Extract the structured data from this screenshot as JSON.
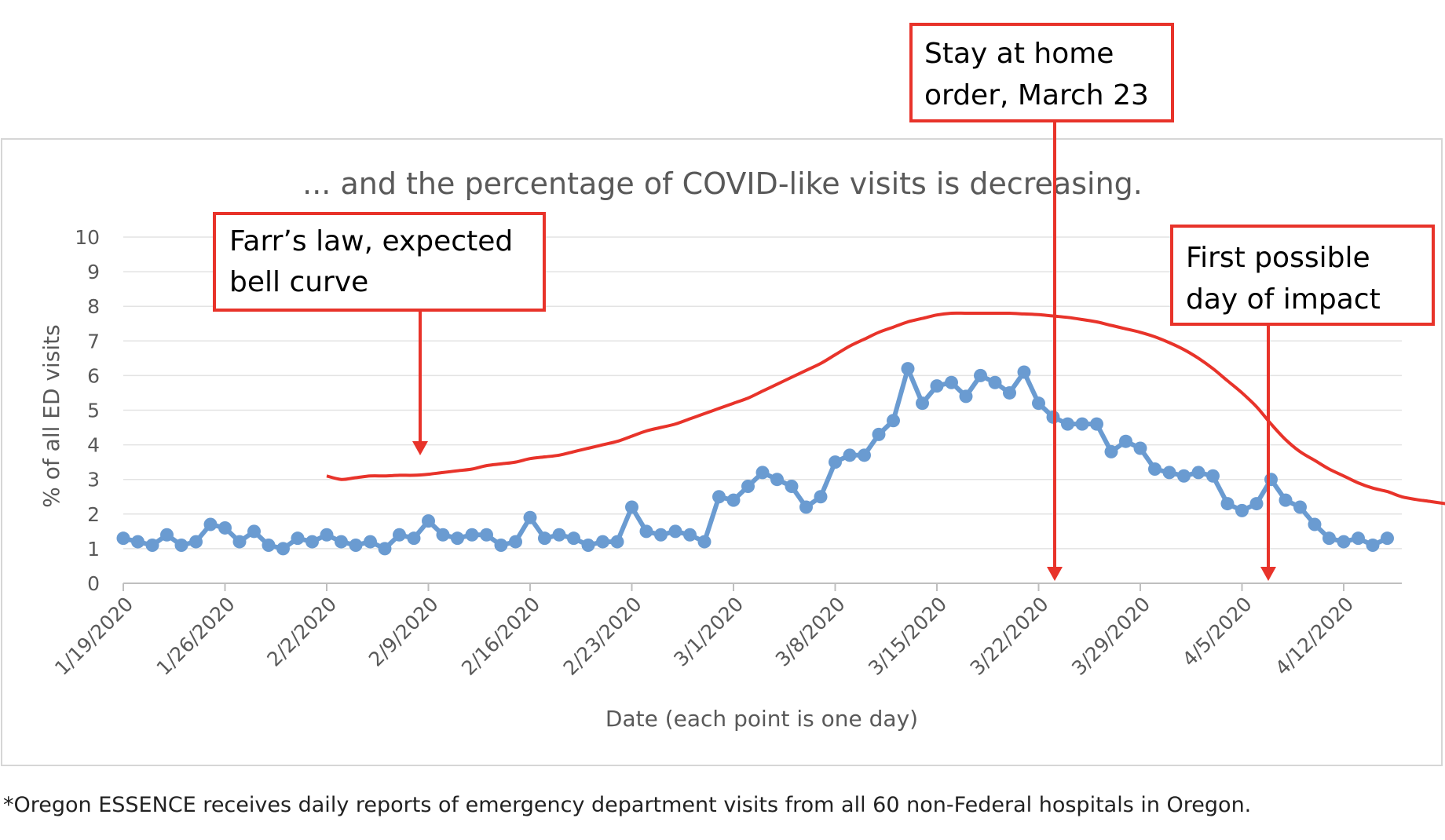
{
  "chart_data": {
    "type": "line",
    "title": "... and the percentage of COVID-like visits is decreasing.",
    "xlabel": "Date (each point is one day)",
    "ylabel": "% of all ED visits",
    "ylim": [
      0,
      10
    ],
    "yticks": [
      0,
      1,
      2,
      3,
      4,
      5,
      6,
      7,
      8,
      9,
      10
    ],
    "grid": true,
    "x_tick_labels": [
      "1/19/2020",
      "1/26/2020",
      "2/2/2020",
      "2/9/2020",
      "2/16/2020",
      "2/23/2020",
      "3/1/2020",
      "3/8/2020",
      "3/15/2020",
      "3/22/2020",
      "3/29/2020",
      "4/5/2020",
      "4/12/2020"
    ],
    "x_start": "1/19/2020",
    "series": [
      {
        "color": "#6a9bd1",
        "values": [
          1.3,
          1.2,
          1.1,
          1.4,
          1.1,
          1.2,
          1.7,
          1.6,
          1.2,
          1.5,
          1.1,
          1.0,
          1.3,
          1.2,
          1.4,
          1.2,
          1.1,
          1.2,
          1.0,
          1.4,
          1.3,
          1.8,
          1.4,
          1.3,
          1.4,
          1.4,
          1.1,
          1.2,
          1.9,
          1.3,
          1.4,
          1.3,
          1.1,
          1.2,
          1.2,
          2.2,
          1.5,
          1.4,
          1.5,
          1.4,
          1.2,
          2.5,
          2.4,
          2.8,
          3.2,
          3.0,
          2.8,
          2.2,
          2.5,
          3.5,
          3.7,
          3.7,
          4.3,
          4.7,
          6.2,
          5.2,
          5.7,
          5.8,
          5.4,
          6.0,
          5.8,
          5.5,
          6.1,
          5.2,
          4.8,
          4.6,
          4.6,
          4.6,
          3.8,
          4.1,
          3.9,
          3.3,
          3.2,
          3.1,
          3.2,
          3.1,
          2.3,
          2.1,
          2.3,
          3.0,
          2.4,
          2.2,
          1.7,
          1.3,
          1.2,
          1.3,
          1.1,
          1.3
        ]
      },
      {
        "color": "#e8332a",
        "x_start": "2/2/2020",
        "values": [
          3.1,
          3.0,
          3.05,
          3.1,
          3.1,
          3.12,
          3.12,
          3.15,
          3.2,
          3.25,
          3.3,
          3.4,
          3.45,
          3.5,
          3.6,
          3.65,
          3.7,
          3.8,
          3.9,
          4.0,
          4.1,
          4.25,
          4.4,
          4.5,
          4.6,
          4.75,
          4.9,
          5.05,
          5.2,
          5.35,
          5.55,
          5.75,
          5.95,
          6.15,
          6.35,
          6.6,
          6.85,
          7.05,
          7.25,
          7.4,
          7.55,
          7.65,
          7.75,
          7.8,
          7.8,
          7.8,
          7.8,
          7.8,
          7.78,
          7.76,
          7.72,
          7.68,
          7.62,
          7.55,
          7.45,
          7.35,
          7.25,
          7.12,
          6.95,
          6.75,
          6.5,
          6.2,
          5.85,
          5.5,
          5.1,
          4.6,
          4.15,
          3.8,
          3.55,
          3.3,
          3.1,
          2.9,
          2.75,
          2.65,
          2.5,
          2.42,
          2.36,
          2.3
        ]
      }
    ],
    "annotations": [
      {
        "lines": [
          "Farr’s law, expected",
          "bell curve"
        ],
        "date": "2/9/2020"
      },
      {
        "lines": [
          "Stay at home",
          "order, March 23"
        ],
        "date": "3/23/2020"
      },
      {
        "lines": [
          "First possible",
          "day of impact"
        ],
        "date": "4/7/2020"
      }
    ]
  },
  "footnote": "*Oregon ESSENCE receives daily reports of emergency department visits from all 60 non-Federal hospitals in Oregon."
}
